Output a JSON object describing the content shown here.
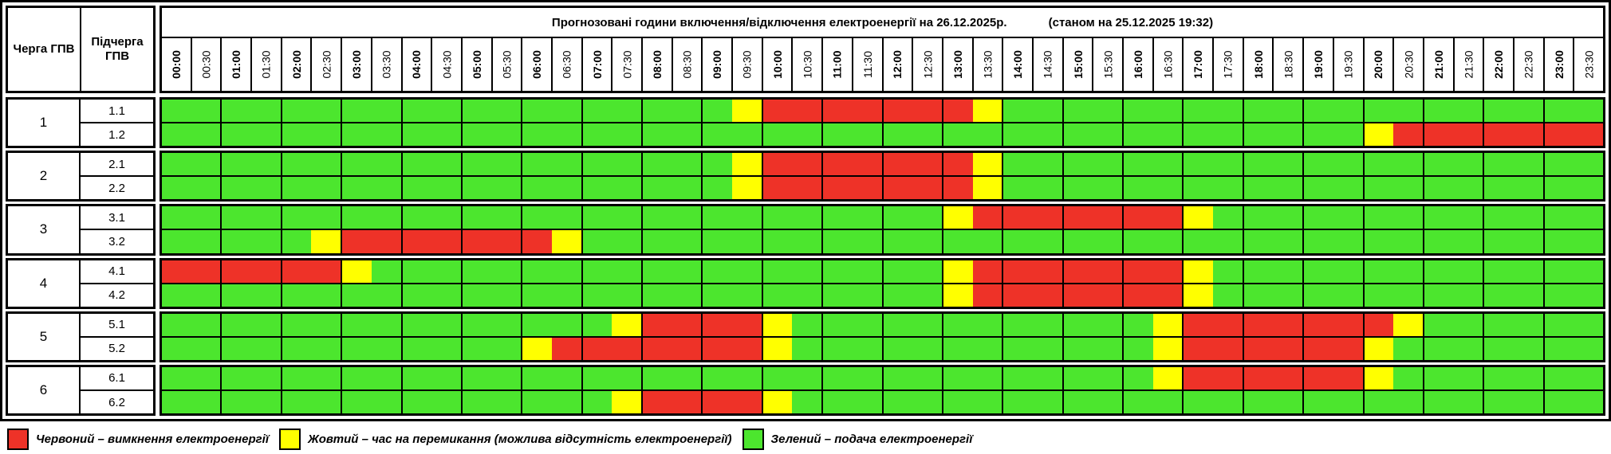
{
  "header": {
    "title": "Прогнозовані години включення/відключення електроенергії на 26.12.2025р.",
    "status": "(станом на 25.12.2025 19:32)",
    "queue_col": "Черга ГПВ",
    "subqueue_col": "Підчерга ГПВ"
  },
  "time_slots": [
    "00:00",
    "00:30",
    "01:00",
    "01:30",
    "02:00",
    "02:30",
    "03:00",
    "03:30",
    "04:00",
    "04:30",
    "05:00",
    "05:30",
    "06:00",
    "06:30",
    "07:00",
    "07:30",
    "08:00",
    "08:30",
    "09:00",
    "09:30",
    "10:00",
    "10:30",
    "11:00",
    "11:30",
    "12:00",
    "12:30",
    "13:00",
    "13:30",
    "14:00",
    "14:30",
    "15:00",
    "15:30",
    "16:00",
    "16:30",
    "17:00",
    "17:30",
    "18:00",
    "18:30",
    "19:00",
    "19:30",
    "20:00",
    "20:30",
    "21:00",
    "21:30",
    "22:00",
    "22:30",
    "23:00",
    "23:30"
  ],
  "colors": {
    "on": "#4CE62E",
    "off": "#EE3228",
    "switch": "#FFFF00"
  },
  "state_codes": {
    "G": "on",
    "Y": "switch",
    "R": "off"
  },
  "queues": [
    {
      "number": "1",
      "rows": [
        {
          "label": "1.1",
          "slots": "GGGGGGGGGGGGGGGGGGGYRRRRRRRYGGGGGGGGGGGGGGGGGGGG"
        },
        {
          "label": "1.2",
          "slots": "GGGGGGGGGGGGGGGGGGGGGGGGGGGGGGGGGGGGGGGGYRRRRRRR"
        }
      ]
    },
    {
      "number": "2",
      "rows": [
        {
          "label": "2.1",
          "slots": "GGGGGGGGGGGGGGGGGGGYRRRRRRRYGGGGGGGGGGGGGGGGGGGG"
        },
        {
          "label": "2.2",
          "slots": "GGGGGGGGGGGGGGGGGGGYRRRRRRRYGGGGGGGGGGGGGGGGGGGG"
        }
      ]
    },
    {
      "number": "3",
      "rows": [
        {
          "label": "3.1",
          "slots": "GGGGGGGGGGGGGGGGGGGGGGGGGGYRRRRRRRYGGGGGGGGGGGGG"
        },
        {
          "label": "3.2",
          "slots": "GGGGGYRRRRRRRYGGGGGGGGGGGGGGGGGGGGGGGGGGGGGGGGGG"
        }
      ]
    },
    {
      "number": "4",
      "rows": [
        {
          "label": "4.1",
          "slots": "RRRRRRYGGGGGGGGGGGGGGGGGGGYRRRRRRRYGGGGGGGGGGGGG"
        },
        {
          "label": "4.2",
          "slots": "GGGGGGGGGGGGGGGGGGGGGGGGGGYRRRRRRRYGGGGGGGGGGGGG"
        }
      ]
    },
    {
      "number": "5",
      "rows": [
        {
          "label": "5.1",
          "slots": "GGGGGGGGGGGGGGGYRRRRYGGGGGGGGGGGGYRRRRRRRYGGGGGG"
        },
        {
          "label": "5.2",
          "slots": "GGGGGGGGGGGGYRRRRRRRYGGGGGGGGGGGGYRRRRRRYGGGGGGG"
        }
      ]
    },
    {
      "number": "6",
      "rows": [
        {
          "label": "6.1",
          "slots": "GGGGGGGGGGGGGGGGGGGGGGGGGGGGGGGGGYRRRRRRYGGGGGGG"
        },
        {
          "label": "6.2",
          "slots": "GGGGGGGGGGGGGGGYRRRRYGGGGGGGGGGGGGGGGGGGGGGGGGGG"
        }
      ]
    }
  ],
  "legend": [
    {
      "state": "off",
      "color": "#EE3228",
      "label": "Червоний – вимкнення електроенергії"
    },
    {
      "state": "switch",
      "color": "#FFFF00",
      "label": "Жовтий – час на перемикання (можлива відсутність електроенергії)"
    },
    {
      "state": "on",
      "color": "#4CE62E",
      "label": "Зелений – подача електроенергії"
    }
  ]
}
